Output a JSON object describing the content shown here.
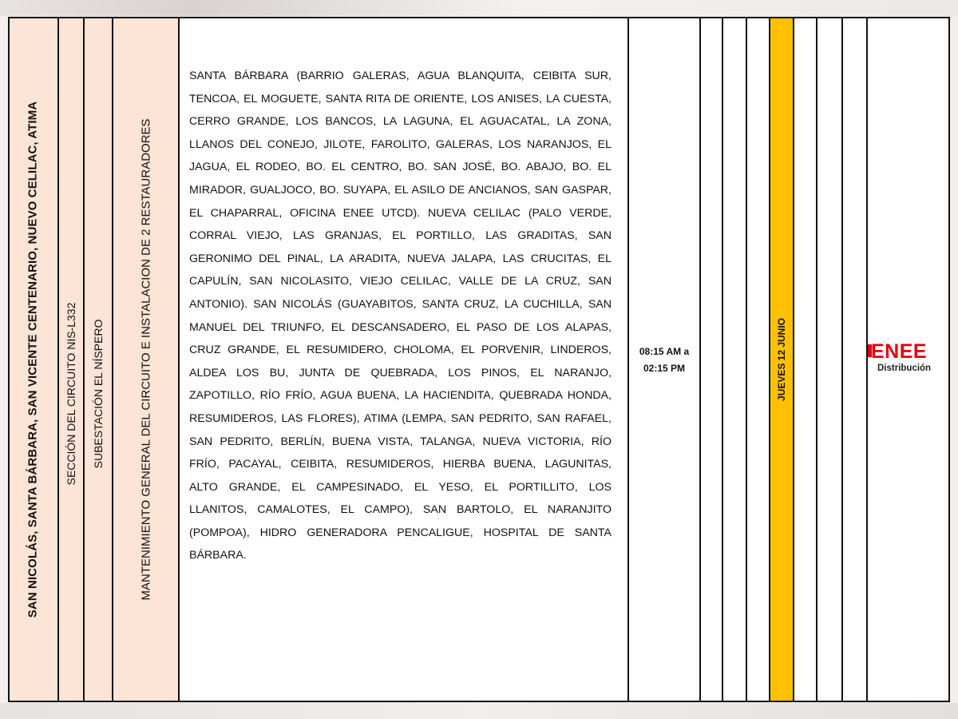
{
  "row": {
    "municipalities": "SAN NICOLÁS, SANTA BÁRBARA, SAN VICENTE CENTENARIO, NUEVO CELILAC, ATIMA",
    "circuit_section": "SECCIÓN DEL CIRCUITO NIS-L332",
    "substation": "SUBESTACIÓN EL NÍSPERO",
    "work_description": "MANTENIMIENTO GENERAL DEL CIRCUITO E INSTALACION DE 2 RESTAURADORES",
    "affected_areas": "SANTA BÁRBARA (BARRIO GALERAS, AGUA BLANQUITA, CEIBITA SUR, TENCOA, EL MOGUETE, SANTA RITA DE ORIENTE, LOS ANISES, LA CUESTA, CERRO GRANDE, LOS BANCOS, LA LAGUNA, EL AGUACATAL, LA ZONA, LLANOS DEL CONEJO, JILOTE, FAROLITO, GALERAS, LOS NARANJOS, EL JAGUA, EL RODEO, BO. EL CENTRO, BO. SAN JOSÉ, BO. ABAJO, BO. EL MIRADOR, GUALJOCO, BO. SUYAPA, EL ASILO DE ANCIANOS, SAN GASPAR, EL CHAPARRAL, OFICINA ENEE UTCD). NUEVA CELILAC (PALO VERDE, CORRAL VIEJO, LAS GRANJAS, EL PORTILLO, LAS GRADITAS, SAN GERONIMO DEL PINAL, LA ARADITA, NUEVA JALAPA, LAS CRUCITAS, EL CAPULÍN, SAN NICOLASITO, VIEJO CELILAC, VALLE DE LA CRUZ, SAN ANTONIO). SAN NICOLÁS (GUAYABITOS, SANTA CRUZ, LA CUCHILLA, SAN MANUEL DEL TRIUNFO, EL DESCANSADERO, EL PASO DE LOS ALAPAS, CRUZ GRANDE, EL RESUMIDERO, CHOLOMA, EL PORVENIR, LINDEROS, ALDEA LOS BU, JUNTA DE QUEBRADA, LOS PINOS, EL NARANJO, ZAPOTILLO, RÍO FRÍO, AGUA BUENA, LA HACIENDITA, QUEBRADA HONDA, RESUMIDEROS, LAS FLORES), ATIMA (LEMPA, SAN PEDRITO, SAN RAFAEL, SAN PEDRITO, BERLÍN, BUENA VISTA, TALANGA, NUEVA VICTORIA, RÍO FRÍO, PACAYAL, CEIBITA, RESUMIDEROS, HIERBA BUENA, LAGUNITAS, ALTO GRANDE, EL CAMPESINADO, EL YESO, EL PORTILLITO, LOS LLANITOS, CAMALOTES, EL CAMPO), SAN BARTOLO, EL NARANJITO (POMPOA), HIDRO GENERADORA PENCALIGUE, HOSPITAL DE SANTA BÁRBARA.",
    "time_start": "08:15 AM a",
    "time_end": "02:15 PM",
    "day": "JUEVES 12 JUNIO"
  },
  "logo": {
    "name": "ENEE",
    "subtitle": "Distribución",
    "color": "#e3000f"
  },
  "colors": {
    "header_fill": "#fce4d6",
    "day_highlight": "#ffc000",
    "border": "#111111"
  }
}
